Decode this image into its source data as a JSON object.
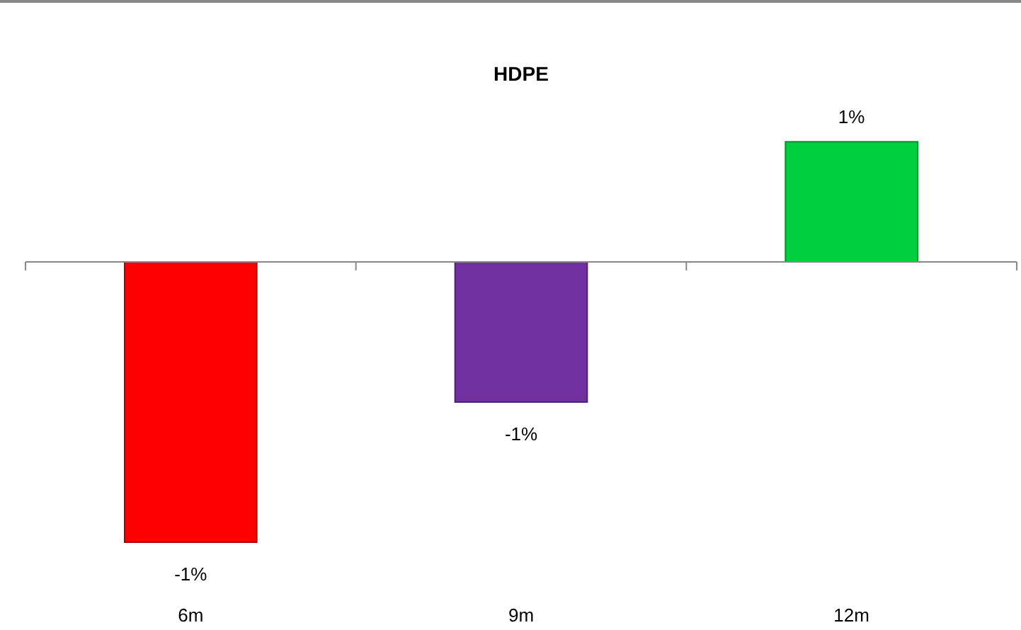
{
  "chart_data": {
    "type": "bar",
    "title": "HDPE",
    "categories": [
      "6m",
      "9m",
      "12m"
    ],
    "values": [
      -1.4,
      -0.7,
      0.6
    ],
    "colors": [
      "#ff0000",
      "#7030a0",
      "#00d040"
    ],
    "value_labels": [
      "-1%",
      "-1%",
      "1%"
    ]
  }
}
